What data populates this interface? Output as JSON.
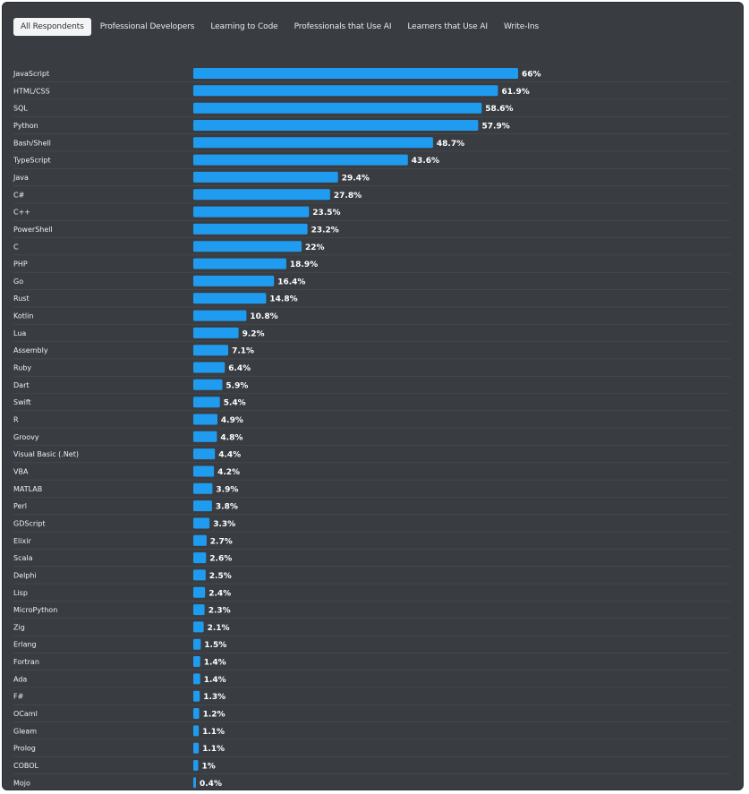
{
  "tabs": [
    {
      "label": "All Respondents",
      "active": true
    },
    {
      "label": "Professional Developers",
      "active": false
    },
    {
      "label": "Learning to Code",
      "active": false
    },
    {
      "label": "Professionals that Use AI",
      "active": false
    },
    {
      "label": "Learners that Use AI",
      "active": false
    },
    {
      "label": "Write-Ins",
      "active": false
    }
  ],
  "colors": {
    "background": "#393d42",
    "bar": "#1f9cf0",
    "row_divider": "#4a4f55",
    "text": "#eef0f2"
  },
  "chart_data": {
    "type": "bar",
    "orientation": "horizontal",
    "value_suffix": "%",
    "xlim": [
      0,
      100
    ],
    "grid": false,
    "categories": [
      "JavaScript",
      "HTML/CSS",
      "SQL",
      "Python",
      "Bash/Shell",
      "TypeScript",
      "Java",
      "C#",
      "C++",
      "PowerShell",
      "C",
      "PHP",
      "Go",
      "Rust",
      "Kotlin",
      "Lua",
      "Assembly",
      "Ruby",
      "Dart",
      "Swift",
      "R",
      "Groovy",
      "Visual Basic (.Net)",
      "VBA",
      "MATLAB",
      "Perl",
      "GDScript",
      "Elixir",
      "Scala",
      "Delphi",
      "Lisp",
      "MicroPython",
      "Zig",
      "Erlang",
      "Fortran",
      "Ada",
      "F#",
      "OCaml",
      "Gleam",
      "Prolog",
      "COBOL",
      "Mojo"
    ],
    "values": [
      66,
      61.9,
      58.6,
      57.9,
      48.7,
      43.6,
      29.4,
      27.8,
      23.5,
      23.2,
      22,
      18.9,
      16.4,
      14.8,
      10.8,
      9.2,
      7.1,
      6.4,
      5.9,
      5.4,
      4.9,
      4.8,
      4.4,
      4.2,
      3.9,
      3.8,
      3.3,
      2.7,
      2.6,
      2.5,
      2.4,
      2.3,
      2.1,
      1.5,
      1.4,
      1.4,
      1.3,
      1.2,
      1.1,
      1.1,
      1,
      0.4
    ],
    "value_labels": [
      "66%",
      "61.9%",
      "58.6%",
      "57.9%",
      "48.7%",
      "43.6%",
      "29.4%",
      "27.8%",
      "23.5%",
      "23.2%",
      "22%",
      "18.9%",
      "16.4%",
      "14.8%",
      "10.8%",
      "9.2%",
      "7.1%",
      "6.4%",
      "5.9%",
      "5.4%",
      "4.9%",
      "4.8%",
      "4.4%",
      "4.2%",
      "3.9%",
      "3.8%",
      "3.3%",
      "2.7%",
      "2.6%",
      "2.5%",
      "2.4%",
      "2.3%",
      "2.1%",
      "1.5%",
      "1.4%",
      "1.4%",
      "1.3%",
      "1.2%",
      "1.1%",
      "1.1%",
      "1%",
      "0.4%"
    ]
  }
}
